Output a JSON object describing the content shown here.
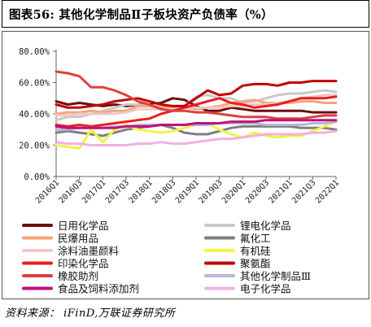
{
  "figure": {
    "title": "图表56:  其他化学制品Ⅱ子板块资产负债率（%）",
    "source": "资料来源： iFinD,万联证券研究所"
  },
  "chart_data": {
    "type": "line",
    "ylim": [
      0,
      80
    ],
    "yticks": [
      0,
      20,
      40,
      60,
      80
    ],
    "ytick_labels": [
      "0.00%",
      "20.00%",
      "40.00%",
      "60.00%",
      "80.00%"
    ],
    "grid": false,
    "legend_placement": "bottom",
    "categories": [
      "2016Q1",
      "2016Q2",
      "2016Q3",
      "2016Q4",
      "2017Q1",
      "2017Q2",
      "2017Q3",
      "2017Q4",
      "2018Q1",
      "2018Q2",
      "2018Q3",
      "2018Q4",
      "2019Q1",
      "2019Q2",
      "2019Q3",
      "2019Q4",
      "2020Q1",
      "2020Q2",
      "2020Q3",
      "2020Q4",
      "2021Q1",
      "2021Q2",
      "2021Q3",
      "2021Q4",
      "2022Q1"
    ],
    "xtick_labels": [
      "2016Q1",
      "2016Q3",
      "2017Q1",
      "2017Q3",
      "2018Q1",
      "2018Q3",
      "2019Q1",
      "2019Q3",
      "2020Q1",
      "2020Q3",
      "2021Q1",
      "2021Q3",
      "2022Q1"
    ],
    "series": [
      {
        "name": "日用化学品",
        "color": "#6b0e0e",
        "width": 3,
        "values": [
          48,
          46,
          47,
          46,
          45,
          46,
          45,
          46,
          46,
          47,
          50,
          49,
          45,
          42,
          42,
          44,
          43,
          42,
          42,
          42,
          42,
          42,
          41,
          41,
          41
        ]
      },
      {
        "name": "锂电化学品",
        "color": "#c9c9c9",
        "width": 3,
        "values": [
          36,
          38,
          38,
          40,
          42,
          44,
          46,
          46,
          45,
          46,
          44,
          45,
          51,
          52,
          50,
          50,
          47,
          48,
          50,
          52,
          53,
          53,
          54,
          55,
          54
        ]
      },
      {
        "name": "民爆用品",
        "color": "#f2a77a",
        "width": 3,
        "values": [
          40,
          41,
          41,
          42,
          41,
          42,
          42,
          45,
          45,
          44,
          44,
          44,
          43,
          44,
          45,
          47,
          48,
          49,
          47,
          47,
          47,
          48,
          48,
          47,
          47
        ]
      },
      {
        "name": "氟化工",
        "color": "#7f7f7f",
        "width": 3,
        "values": [
          28,
          29,
          28,
          27,
          26,
          28,
          30,
          31,
          32,
          33,
          31,
          28,
          27,
          27,
          29,
          31,
          32,
          32,
          32,
          32,
          32,
          31,
          31,
          31,
          30
        ]
      },
      {
        "name": "涂料油墨颜料",
        "color": "#f4c6c6",
        "width": 3,
        "values": [
          39,
          39,
          40,
          40,
          40,
          40,
          41,
          43,
          43,
          43,
          43,
          44,
          44,
          44,
          44,
          45,
          45,
          46,
          46,
          47,
          48,
          50,
          51,
          52,
          52
        ]
      },
      {
        "name": "有机硅",
        "color": "#f2f24a",
        "width": 3,
        "values": [
          20,
          19,
          18,
          30,
          22,
          30,
          33,
          30,
          29,
          28,
          29,
          31,
          33,
          34,
          30,
          27,
          25,
          28,
          26,
          25,
          26,
          26,
          29,
          32,
          35
        ]
      },
      {
        "name": "印染化学品",
        "color": "#ee1c1c",
        "width": 3,
        "values": [
          33,
          32,
          33,
          32,
          33,
          34,
          35,
          36,
          37,
          40,
          42,
          44,
          46,
          48,
          50,
          47,
          46,
          44,
          45,
          46,
          48,
          50,
          50,
          50,
          51
        ]
      },
      {
        "name": "聚氨酯",
        "color": "#c00000",
        "width": 3,
        "values": [
          46,
          44,
          44,
          45,
          46,
          48,
          49,
          50,
          48,
          46,
          45,
          45,
          50,
          55,
          52,
          53,
          58,
          59,
          59,
          58,
          60,
          60,
          61,
          61,
          61
        ]
      },
      {
        "name": "橡胶助剂",
        "color": "#dc4040",
        "width": 3,
        "values": [
          67,
          66,
          64,
          57,
          57,
          55,
          52,
          48,
          46,
          43,
          42,
          42,
          41,
          41,
          40,
          39,
          38,
          38,
          38,
          37,
          37,
          37,
          38,
          39,
          39
        ]
      },
      {
        "name": "其他化学制品Ⅲ",
        "color": "#b7b7d8",
        "width": 3,
        "values": [
          30,
          30,
          31,
          31,
          31,
          32,
          32,
          33,
          33,
          33,
          33,
          33,
          33,
          33,
          34,
          34,
          34,
          34,
          33,
          33,
          33,
          33,
          34,
          34,
          35
        ]
      },
      {
        "name": "食品及饲料添加剂",
        "color": "#c0117c",
        "width": 3,
        "values": [
          32,
          31,
          31,
          31,
          31,
          31,
          32,
          32,
          32,
          33,
          33,
          33,
          34,
          34,
          34,
          35,
          35,
          35,
          36,
          36,
          36,
          36,
          36,
          36,
          36
        ]
      },
      {
        "name": "电子化学品",
        "color": "#f0b0e0",
        "width": 3,
        "values": [
          22,
          21,
          21,
          20,
          20,
          20,
          20,
          21,
          21,
          22,
          21,
          21,
          22,
          23,
          24,
          24,
          25,
          26,
          27,
          27,
          27,
          27,
          28,
          28,
          29
        ]
      }
    ]
  }
}
